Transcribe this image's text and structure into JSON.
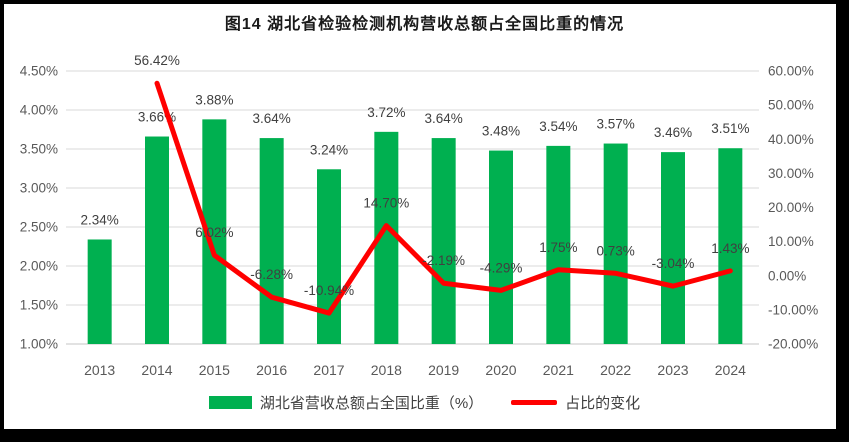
{
  "chart_data": {
    "type": "combo",
    "title": "图14 湖北省检验检测机构营收总额占全国比重的情况",
    "categories": [
      "2013",
      "2014",
      "2015",
      "2016",
      "2017",
      "2018",
      "2019",
      "2020",
      "2021",
      "2022",
      "2023",
      "2024"
    ],
    "series": [
      {
        "name": "湖北省营收总额占全国比重（%）",
        "type": "bar",
        "axis": "left",
        "color": "#00B050",
        "values": [
          2.34,
          3.66,
          3.88,
          3.64,
          3.24,
          3.72,
          3.64,
          3.48,
          3.54,
          3.57,
          3.46,
          3.51
        ],
        "labels": [
          "2.34%",
          "3.66%",
          "3.88%",
          "3.64%",
          "3.24%",
          "3.72%",
          "3.64%",
          "3.48%",
          "3.54%",
          "3.57%",
          "3.46%",
          "3.51%"
        ]
      },
      {
        "name": "占比的变化",
        "type": "line",
        "axis": "right",
        "color": "#FF0000",
        "values": [
          null,
          56.42,
          6.02,
          -6.28,
          -10.94,
          14.7,
          -2.19,
          -4.29,
          1.75,
          0.73,
          -3.04,
          1.43
        ],
        "labels": [
          null,
          "56.42%",
          "6.02%",
          "-6.28%",
          "-10.94%",
          "14.70%",
          "-2.19%",
          "-4.29%",
          "1.75%",
          "0.73%",
          "-3.04%",
          "1.43%"
        ]
      }
    ],
    "left_axis": {
      "min": 1.0,
      "max": 4.5,
      "step": 0.5,
      "ticks": [
        "4.50%",
        "4.00%",
        "3.50%",
        "3.00%",
        "2.50%",
        "2.00%",
        "1.50%",
        "1.00%"
      ]
    },
    "right_axis": {
      "min": -20,
      "max": 60,
      "step": 10,
      "ticks": [
        "60.00%",
        "50.00%",
        "40.00%",
        "30.00%",
        "20.00%",
        "10.00%",
        "0.00%",
        "-10.00%",
        "-20.00%"
      ]
    },
    "grid": {
      "horizontal": true,
      "color": "#D9D9D9"
    },
    "legend_position": "bottom",
    "text_colors": {
      "title": "#1A1A1A",
      "axis": "#595959",
      "data_label": "#404040"
    }
  }
}
